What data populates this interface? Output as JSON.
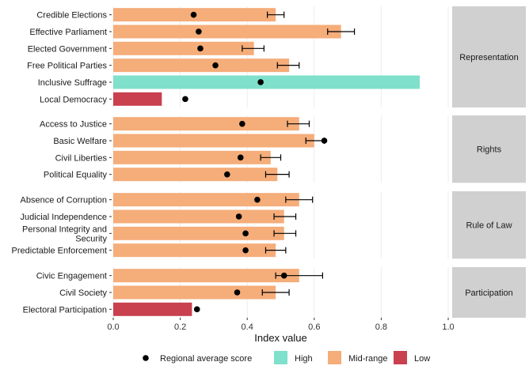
{
  "chart_data": {
    "type": "bar",
    "orientation": "horizontal",
    "xlabel": "Index value",
    "xlim": [
      0,
      1
    ],
    "xticks": [
      "0.0",
      "0.2",
      "0.4",
      "0.6",
      "0.8",
      "1.0"
    ],
    "xtick_values": [
      0,
      0.2,
      0.4,
      0.6,
      0.8,
      1.0
    ],
    "legend_position": "bottom",
    "legend": {
      "point_label": "Regional average score",
      "fill_items": [
        {
          "key": "High",
          "label": "High",
          "color": "#7fe0cb"
        },
        {
          "key": "Mid-range",
          "label": "Mid-range",
          "color": "#f5ad7a"
        },
        {
          "key": "Low",
          "label": "Low",
          "color": "#c9404f"
        }
      ]
    },
    "facets": [
      {
        "name": "Representation",
        "categories": [
          {
            "label": "Credible Elections",
            "value": 0.485,
            "level": "Mid-range",
            "regional_avg": 0.24,
            "err": [
              0.46,
              0.51
            ]
          },
          {
            "label": "Effective Parliament",
            "value": 0.68,
            "level": "Mid-range",
            "regional_avg": 0.255,
            "err": [
              0.64,
              0.72
            ]
          },
          {
            "label": "Elected Government",
            "value": 0.42,
            "level": "Mid-range",
            "regional_avg": 0.26,
            "err": [
              0.385,
              0.45
            ]
          },
          {
            "label": "Free Political Parties",
            "value": 0.525,
            "level": "Mid-range",
            "regional_avg": 0.305,
            "err": [
              0.49,
              0.555
            ]
          },
          {
            "label": "Inclusive Suffrage",
            "value": 0.915,
            "level": "High",
            "regional_avg": 0.44,
            "err": null
          },
          {
            "label": "Local Democracy",
            "value": 0.145,
            "level": "Low",
            "regional_avg": 0.215,
            "err": null
          }
        ]
      },
      {
        "name": "Rights",
        "categories": [
          {
            "label": "Access to Justice",
            "value": 0.555,
            "level": "Mid-range",
            "regional_avg": 0.385,
            "err": [
              0.52,
              0.585
            ]
          },
          {
            "label": "Basic Welfare",
            "value": 0.6,
            "level": "Mid-range",
            "regional_avg": 0.63,
            "err": [
              0.575,
              0.63
            ]
          },
          {
            "label": "Civil Liberties",
            "value": 0.47,
            "level": "Mid-range",
            "regional_avg": 0.38,
            "err": [
              0.44,
              0.5
            ]
          },
          {
            "label": "Political Equality",
            "value": 0.49,
            "level": "Mid-range",
            "regional_avg": 0.34,
            "err": [
              0.455,
              0.525
            ]
          }
        ]
      },
      {
        "name": "Rule of Law",
        "categories": [
          {
            "label": "Absence of Corruption",
            "value": 0.555,
            "level": "Mid-range",
            "regional_avg": 0.43,
            "err": [
              0.515,
              0.595
            ]
          },
          {
            "label": "Judicial Independence",
            "value": 0.51,
            "level": "Mid-range",
            "regional_avg": 0.375,
            "err": [
              0.48,
              0.545
            ]
          },
          {
            "label": "Personal Integrity and\nSecurity",
            "value": 0.51,
            "level": "Mid-range",
            "regional_avg": 0.395,
            "err": [
              0.48,
              0.545
            ]
          },
          {
            "label": "Predictable Enforcement",
            "value": 0.485,
            "level": "Mid-range",
            "regional_avg": 0.395,
            "err": [
              0.455,
              0.515
            ]
          }
        ]
      },
      {
        "name": "Participation",
        "categories": [
          {
            "label": "Civic Engagement",
            "value": 0.555,
            "level": "Mid-range",
            "regional_avg": 0.51,
            "err": [
              0.485,
              0.625
            ]
          },
          {
            "label": "Civil Society",
            "value": 0.485,
            "level": "Mid-range",
            "regional_avg": 0.37,
            "err": [
              0.445,
              0.525
            ]
          },
          {
            "label": "Electoral Participation",
            "value": 0.235,
            "level": "Low",
            "regional_avg": 0.25,
            "err": null
          }
        ]
      }
    ]
  }
}
